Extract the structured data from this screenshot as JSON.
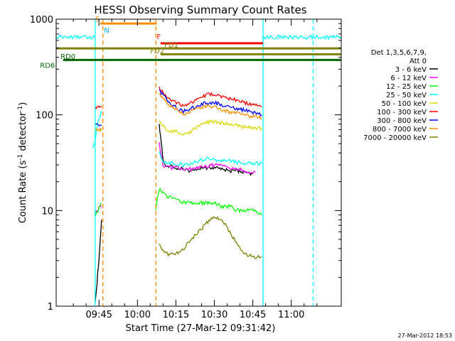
{
  "chart_data": {
    "type": "line",
    "title": "HESSI Observing Summary Count Rates",
    "xlabel": "Start Time (27-Mar-12 09:31:42)",
    "ylabel_main": "Count Rate (s",
    "ylabel_sup": "-1",
    "ylabel_mid": " detector",
    "ylabel_sup2": "-1",
    "ylabel_end": ")",
    "yscale": "log",
    "ylim": [
      1,
      1000
    ],
    "xlim_minutes": [
      -31.7,
      79.5
    ],
    "x_ticks": [
      {
        "label": "09:45",
        "m": -15
      },
      {
        "label": "10:00",
        "m": 0
      },
      {
        "label": "10:15",
        "m": 15
      },
      {
        "label": "10:30",
        "m": 30
      },
      {
        "label": "10:45",
        "m": 45
      },
      {
        "label": "11:00",
        "m": 60
      }
    ],
    "y_ticks": [
      {
        "label": "1",
        "v": 1
      },
      {
        "label": "10",
        "v": 10
      },
      {
        "label": "100",
        "v": 100
      },
      {
        "label": "1000",
        "v": 1000
      }
    ],
    "legend": {
      "title_lines": [
        "Det 1,3,5,6,7,9,",
        "Att 0"
      ],
      "entries": [
        {
          "label": "3 - 6 keV",
          "color": "#000000"
        },
        {
          "label": "6 - 12 keV",
          "color": "#ff00ff"
        },
        {
          "label": "12 - 25 keV",
          "color": "#00ff00"
        },
        {
          "label": "25 - 50 keV",
          "color": "#00ffff"
        },
        {
          "label": "50 - 100 keV",
          "color": "#d8d800"
        },
        {
          "label": "100 - 300 keV",
          "color": "#ff0000"
        },
        {
          "label": "300 - 800 keV",
          "color": "#0000ff"
        },
        {
          "label": "800 - 7000 keV",
          "color": "#ff8c00"
        },
        {
          "label": "7000 - 20000 keV",
          "color": "#808000"
        }
      ]
    },
    "series": [
      {
        "name": "3 - 6 keV",
        "color": "#000000",
        "segments": [
          {
            "x": [
              -16.5,
              -16,
              -15.5,
              -15,
              -14.5,
              -14
            ],
            "y": [
              1.1,
              1.4,
              2.2,
              3.0,
              5.0,
              8.0
            ]
          },
          {
            "x": [
              8.5,
              9,
              9.5,
              10,
              11,
              13,
              15,
              18,
              21,
              24,
              27,
              30,
              33,
              36,
              39,
              42,
              45
            ],
            "y": [
              80,
              60,
              45,
              35,
              30,
              29,
              28,
              27,
              26,
              27,
              28,
              28,
              27,
              26,
              26,
              25,
              24
            ]
          }
        ]
      },
      {
        "name": "6 - 12 keV",
        "color": "#ff00ff",
        "segments": [
          {
            "x": [
              -16.5,
              -15.5,
              -14.5,
              -14
            ],
            "y": [
              9,
              10,
              11,
              11
            ]
          },
          {
            "x": [
              8.5,
              9.5,
              10,
              11,
              13,
              15,
              18,
              21,
              24,
              27,
              30,
              33,
              36,
              39,
              42,
              45,
              46
            ],
            "y": [
              50,
              35,
              30,
              29,
              28,
              28,
              27,
              27,
              28,
              29,
              30,
              29,
              28,
              27,
              26,
              25,
              25
            ]
          }
        ]
      },
      {
        "name": "12 - 25 keV",
        "color": "#00ff00",
        "segments": [
          {
            "x": [
              -16.5,
              -15.5,
              -14.5,
              -14
            ],
            "y": [
              9,
              10,
              11,
              12
            ]
          },
          {
            "x": [
              7,
              8.5,
              10,
              12,
              15,
              18,
              21,
              24,
              27,
              30,
              33,
              36,
              39,
              42,
              45,
              48.5
            ],
            "y": [
              10,
              17,
              15,
              14,
              13,
              12,
              12,
              12,
              12,
              12,
              11,
              11,
              10,
              10,
              10,
              9
            ]
          }
        ]
      },
      {
        "name": "25 - 50 keV",
        "color": "#00ffff",
        "segments": [
          {
            "x": [
              -31.7,
              -22,
              -16.8
            ],
            "y": [
              650,
              650,
              650
            ]
          },
          {
            "x": [
              -17.5,
              -16.5,
              -15.5,
              -14.5,
              -14
            ],
            "y": [
              45,
              55,
              85,
              100,
              110
            ]
          },
          {
            "x": [
              8.5,
              10,
              12,
              15,
              18,
              21,
              24,
              27,
              30,
              33,
              36,
              39,
              42,
              45,
              48.5
            ],
            "y": [
              40,
              32,
              32,
              31,
              30,
              31,
              33,
              35,
              34,
              33,
              33,
              32,
              31,
              31,
              31
            ]
          },
          {
            "x": [
              48.5,
              56,
              64,
              79.5
            ],
            "y": [
              650,
              650,
              650,
              650
            ]
          }
        ]
      },
      {
        "name": "50 - 100 keV",
        "color": "#d8d800",
        "segments": [
          {
            "x": [
              -16.5,
              -14
            ],
            "y": [
              70,
              70
            ]
          },
          {
            "x": [
              8.5,
              10,
              12,
              14,
              16,
              18,
              20,
              22,
              25,
              28,
              31,
              34,
              37,
              40,
              43,
              46,
              48.5
            ],
            "y": [
              85,
              75,
              70,
              68,
              66,
              62,
              64,
              72,
              80,
              85,
              84,
              82,
              80,
              77,
              74,
              72,
              72
            ]
          }
        ]
      },
      {
        "name": "100 - 300 keV",
        "color": "#ff0000",
        "segments": [
          {
            "x": [
              -16.5,
              -14
            ],
            "y": [
              120,
              120
            ]
          },
          {
            "x": [
              8.5,
              10,
              12,
              14,
              16,
              18,
              20,
              22,
              25,
              28,
              31,
              34,
              37,
              40,
              43,
              46,
              48.5
            ],
            "y": [
              190,
              170,
              150,
              140,
              130,
              125,
              130,
              140,
              155,
              165,
              160,
              150,
              145,
              140,
              130,
              125,
              120
            ]
          }
        ]
      },
      {
        "name": "300 - 800 keV",
        "color": "#0000ff",
        "segments": [
          {
            "x": [
              -16.5,
              -14
            ],
            "y": [
              78,
              78
            ]
          },
          {
            "x": [
              8.5,
              10,
              12,
              14,
              16,
              18,
              20,
              22,
              25,
              28,
              31,
              34,
              37,
              40,
              43,
              46,
              48.5
            ],
            "y": [
              180,
              160,
              140,
              125,
              115,
              110,
              112,
              120,
              130,
              135,
              132,
              125,
              120,
              115,
              110,
              105,
              100
            ]
          }
        ]
      },
      {
        "name": "800 - 7000 keV",
        "color": "#ff8c00",
        "segments": [
          {
            "x": [
              -16.5,
              -14
            ],
            "y": [
              70,
              70
            ]
          },
          {
            "x": [
              8.5,
              10,
              12,
              14,
              16,
              18,
              20,
              22,
              25,
              28,
              31,
              34,
              37,
              40,
              43,
              46,
              48.5
            ],
            "y": [
              170,
              150,
              130,
              120,
              110,
              102,
              105,
              112,
              120,
              122,
              118,
              112,
              106,
              102,
              98,
              95,
              92
            ]
          }
        ]
      },
      {
        "name": "7000 - 20000 keV",
        "color": "#808000",
        "segments": [
          {
            "x": [
              8.5,
              10,
              12,
              15,
              18,
              21,
              24,
              27,
              30,
              33,
              36,
              39,
              42,
              45,
              48.5
            ],
            "y": [
              4.5,
              3.8,
              3.5,
              3.5,
              4,
              5,
              6,
              7.5,
              8.5,
              8,
              6,
              4.5,
              3.5,
              3.3,
              3.3
            ]
          }
        ]
      }
    ],
    "vlines": [
      {
        "m": -16.5,
        "color": "#00ffff",
        "dash": "none"
      },
      {
        "m": -13.5,
        "color": "#ff8c00",
        "dash": "6,4"
      },
      {
        "m": 7.2,
        "color": "#ff8c00",
        "dash": "6,4"
      },
      {
        "m": 49,
        "color": "#00ffff",
        "dash": "none"
      },
      {
        "m": 68.5,
        "color": "#00ffff",
        "dash": "6,4"
      }
    ],
    "flags": [
      {
        "label": "S",
        "color": "#ff8c00",
        "x0": -14.5,
        "x1": 7.5,
        "y": 900,
        "label_x": -16.5,
        "label_y": 950
      },
      {
        "label": "N",
        "color": "#00aaff",
        "x0": null,
        "x1": null,
        "y": null,
        "label_x": -13,
        "label_y": 720
      },
      {
        "label": "F",
        "color": "#ff0000",
        "x0": 9,
        "x1": 49,
        "y": 560,
        "label_x": 7.5,
        "label_y": 620
      },
      {
        "label": "FD1",
        "color": "#808000",
        "x0": -31.7,
        "x1": 79.5,
        "y": 495,
        "label_x": 10.5,
        "label_y": 510
      },
      {
        "label": "FD2",
        "color": "#808000",
        "x0": 9,
        "x1": 79.5,
        "y": 430,
        "label_x": 5,
        "label_y": 440
      },
      {
        "label": "RD0",
        "color": "#006400",
        "x0": -29,
        "x1": 79.5,
        "y": 375,
        "label_x": -30,
        "label_y": 385
      },
      {
        "label": "RD6",
        "color": "#006400",
        "x0": null,
        "x1": null,
        "y": null,
        "label_x": -38,
        "label_y": 310
      }
    ]
  },
  "timestamp": "27-Mar-2012 18:53"
}
